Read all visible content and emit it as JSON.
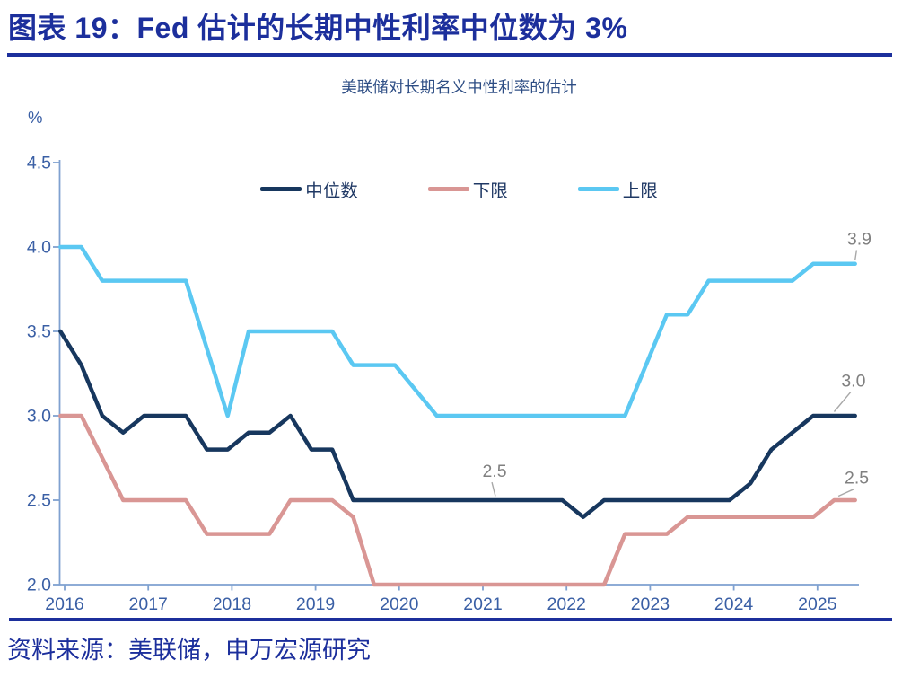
{
  "header": {
    "title": "图表 19：Fed 估计的长期中性利率中位数为 3%"
  },
  "footer": {
    "source": "资料来源：美联储，申万宏源研究"
  },
  "colors": {
    "accent_blue": "#1c2f9c",
    "median_line": "#17375e",
    "lower_line": "#d99694",
    "upper_line": "#5bc8f2",
    "axis_line": "#7fa1d0",
    "axis_text": "#3a5fa5",
    "annotation_text": "#808080",
    "leader_line": "#a8a8a8"
  },
  "chart_data": {
    "type": "line",
    "title": "美联储对长期名义中性利率的估计",
    "unit": "%",
    "xlabel": "",
    "ylabel": "%",
    "ylim": [
      2.0,
      4.5
    ],
    "yticks": [
      2.0,
      2.5,
      3.0,
      3.5,
      4.0,
      4.5
    ],
    "xticks": [
      2016,
      2017,
      2018,
      2019,
      2020,
      2021,
      2022,
      2023,
      2024,
      2025
    ],
    "grid": false,
    "legend_position": "top-center",
    "x": [
      2015.95,
      2016.2,
      2016.45,
      2016.7,
      2016.95,
      2017.2,
      2017.45,
      2017.7,
      2017.95,
      2018.2,
      2018.45,
      2018.7,
      2018.95,
      2019.2,
      2019.45,
      2019.7,
      2019.95,
      2020.45,
      2020.7,
      2020.95,
      2021.2,
      2021.45,
      2021.7,
      2021.95,
      2022.2,
      2022.45,
      2022.7,
      2022.95,
      2023.2,
      2023.45,
      2023.7,
      2023.95,
      2024.2,
      2024.45,
      2024.7,
      2024.95,
      2025.2,
      2025.45
    ],
    "series": [
      {
        "name": "中位数",
        "color": "#17375e",
        "values": [
          3.5,
          3.3,
          3.0,
          2.9,
          3.0,
          3.0,
          3.0,
          2.8,
          2.8,
          2.9,
          2.9,
          3.0,
          2.8,
          2.8,
          2.5,
          2.5,
          2.5,
          2.5,
          2.5,
          2.5,
          2.5,
          2.5,
          2.5,
          2.5,
          2.4,
          2.5,
          2.5,
          2.5,
          2.5,
          2.5,
          2.5,
          2.5,
          2.6,
          2.8,
          2.9,
          3.0,
          3.0,
          3.0
        ]
      },
      {
        "name": "下限",
        "color": "#d99694",
        "values": [
          3.0,
          3.0,
          2.75,
          2.5,
          2.5,
          2.5,
          2.5,
          2.3,
          2.3,
          2.3,
          2.3,
          2.5,
          2.5,
          2.5,
          2.4,
          2.0,
          2.0,
          2.0,
          2.0,
          2.0,
          2.0,
          2.0,
          2.0,
          2.0,
          2.0,
          2.0,
          2.3,
          2.3,
          2.3,
          2.4,
          2.4,
          2.4,
          2.4,
          2.4,
          2.4,
          2.4,
          2.5,
          2.5
        ]
      },
      {
        "name": "上限",
        "color": "#5bc8f2",
        "values": [
          4.0,
          4.0,
          3.8,
          3.8,
          3.8,
          3.8,
          3.8,
          3.4,
          3.0,
          3.5,
          3.5,
          3.5,
          3.5,
          3.5,
          3.3,
          3.3,
          3.3,
          3.0,
          3.0,
          3.0,
          3.0,
          3.0,
          3.0,
          3.0,
          3.0,
          3.0,
          3.0,
          3.3,
          3.6,
          3.6,
          3.8,
          3.8,
          3.8,
          3.8,
          3.8,
          3.9,
          3.9,
          3.9
        ]
      }
    ],
    "annotations": [
      {
        "text": "2.5",
        "x": 2021.15,
        "y": 2.5,
        "lx": 2021.14,
        "ly": 2.67
      },
      {
        "text": "3.9",
        "x": 2025.45,
        "y": 3.9,
        "lx": 2025.5,
        "ly": 4.045
      },
      {
        "text": "3.0",
        "x": 2025.2,
        "y": 3.0,
        "lx": 2025.43,
        "ly": 3.205
      },
      {
        "text": "2.5",
        "x": 2025.25,
        "y": 2.5,
        "lx": 2025.47,
        "ly": 2.63
      }
    ]
  }
}
